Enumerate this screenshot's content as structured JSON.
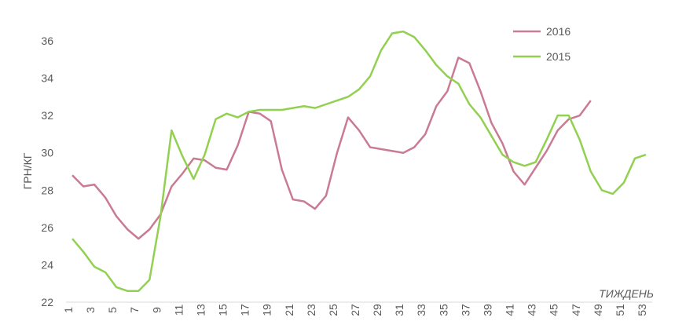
{
  "chart_data": {
    "type": "line",
    "y_label": "ГРН/КГ",
    "x_label": "ТИЖДЕНЬ",
    "x": [
      1,
      2,
      3,
      4,
      5,
      6,
      7,
      8,
      9,
      10,
      11,
      12,
      13,
      14,
      15,
      16,
      17,
      18,
      19,
      20,
      21,
      22,
      23,
      24,
      25,
      26,
      27,
      28,
      29,
      30,
      31,
      32,
      33,
      34,
      35,
      36,
      37,
      38,
      39,
      40,
      41,
      42,
      43,
      44,
      45,
      46,
      47,
      48,
      49,
      50,
      51,
      52,
      53
    ],
    "series": [
      {
        "name": "2016",
        "color": "#c97b93",
        "values": [
          28.8,
          28.2,
          28.3,
          27.6,
          26.6,
          25.9,
          25.4,
          25.9,
          26.7,
          28.2,
          28.9,
          29.7,
          29.6,
          29.2,
          29.1,
          30.4,
          32.2,
          32.1,
          31.7,
          29.1,
          27.5,
          27.4,
          27.0,
          27.7,
          30.0,
          31.9,
          31.2,
          30.3,
          30.2,
          30.1,
          30.0,
          30.3,
          31.0,
          32.5,
          33.3,
          35.1,
          34.8,
          33.3,
          31.6,
          30.5,
          29.0,
          28.3,
          29.2,
          30.1,
          31.2,
          31.8,
          32.0,
          32.8,
          null,
          null,
          null,
          null,
          null
        ]
      },
      {
        "name": "2015",
        "color": "#92d050",
        "values": [
          25.4,
          24.7,
          23.9,
          23.6,
          22.8,
          22.6,
          22.6,
          23.2,
          26.6,
          31.2,
          29.8,
          28.6,
          29.9,
          31.8,
          32.1,
          31.9,
          32.2,
          32.3,
          32.3,
          32.3,
          32.4,
          32.5,
          32.4,
          32.6,
          32.8,
          33.0,
          33.4,
          34.1,
          35.5,
          36.4,
          36.5,
          36.2,
          35.5,
          34.7,
          34.1,
          33.7,
          32.6,
          31.9,
          30.9,
          29.9,
          29.5,
          29.3,
          29.5,
          30.7,
          32.0,
          32.0,
          30.7,
          29.0,
          28.0,
          27.8,
          28.4,
          29.7,
          29.9
        ]
      }
    ],
    "xlim": [
      1,
      53
    ],
    "xticks": [
      1,
      3,
      5,
      7,
      9,
      11,
      13,
      15,
      17,
      19,
      21,
      23,
      25,
      27,
      29,
      31,
      33,
      35,
      37,
      39,
      41,
      43,
      45,
      47,
      49,
      51,
      53
    ],
    "ylim": [
      22,
      36
    ],
    "yticks": [
      22,
      24,
      26,
      28,
      30,
      32,
      34,
      36
    ],
    "grid": false,
    "legend": "top-right"
  }
}
